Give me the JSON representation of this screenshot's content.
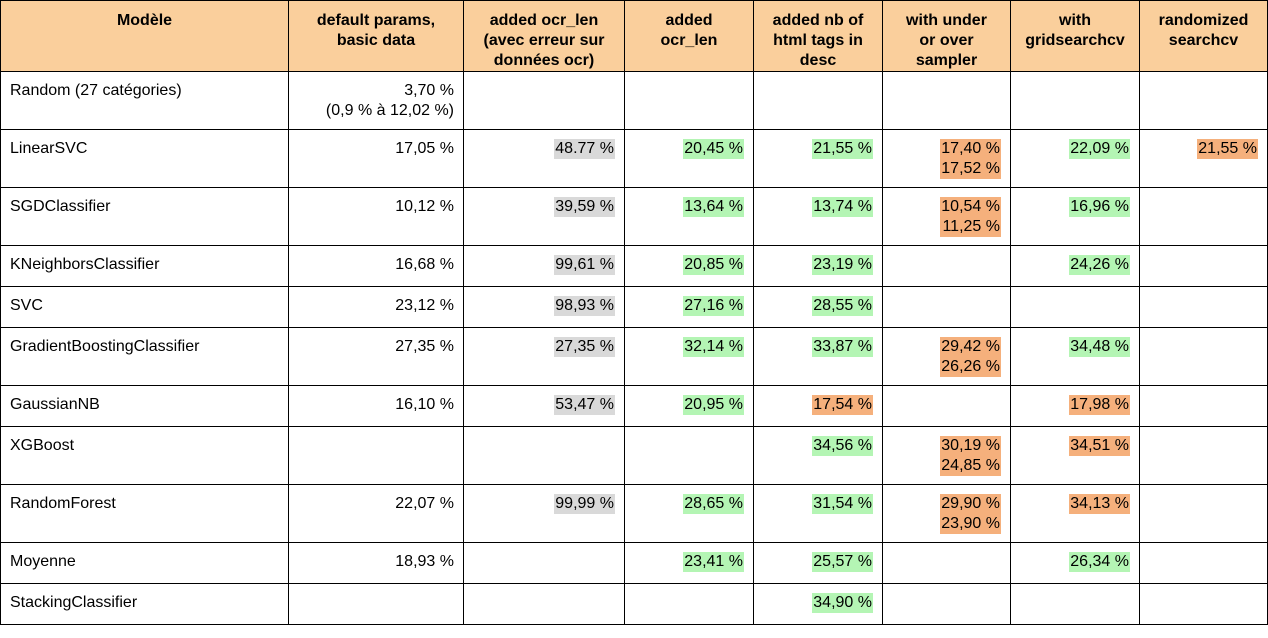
{
  "headers": [
    {
      "lines": [
        "Modèle"
      ]
    },
    {
      "lines": [
        "default params,",
        "basic data"
      ]
    },
    {
      "lines": [
        "added ocr_len",
        "(avec erreur sur",
        "données ocr)"
      ]
    },
    {
      "lines": [
        "added",
        "ocr_len"
      ]
    },
    {
      "lines": [
        "added nb of",
        "html tags in",
        "desc"
      ]
    },
    {
      "lines": [
        "with under",
        "or over",
        "sampler"
      ]
    },
    {
      "lines": [
        "with",
        "gridsearchcv"
      ]
    },
    {
      "lines": [
        "randomized",
        "searchcv"
      ]
    }
  ],
  "colors": {
    "header": "#facf9c",
    "gray": "#d9d9d9",
    "green": "#b4f5b4",
    "orange": "#f5b07c"
  },
  "rows": [
    {
      "model": "Random (27 catégories)",
      "cells": [
        {
          "lines": [
            "3,70 %",
            "(0,9 % à 12,02 %)"
          ],
          "hl": "none"
        },
        {
          "lines": [],
          "hl": "none"
        },
        {
          "lines": [],
          "hl": "none"
        },
        {
          "lines": [],
          "hl": "none"
        },
        {
          "lines": [],
          "hl": "none"
        },
        {
          "lines": [],
          "hl": "none"
        },
        {
          "lines": [],
          "hl": "none"
        }
      ]
    },
    {
      "model": "LinearSVC",
      "cells": [
        {
          "lines": [
            "17,05 %"
          ],
          "hl": "none"
        },
        {
          "lines": [
            "48.77 %"
          ],
          "hl": "gray"
        },
        {
          "lines": [
            "20,45 %"
          ],
          "hl": "green"
        },
        {
          "lines": [
            "21,55 %"
          ],
          "hl": "green"
        },
        {
          "lines": [
            "17,40 %",
            "17,52 %"
          ],
          "hl": "orange"
        },
        {
          "lines": [
            "22,09 %"
          ],
          "hl": "green"
        },
        {
          "lines": [
            "21,55 %"
          ],
          "hl": "orange"
        }
      ]
    },
    {
      "model": "SGDClassifier",
      "cells": [
        {
          "lines": [
            "10,12 %"
          ],
          "hl": "none"
        },
        {
          "lines": [
            "39,59 %"
          ],
          "hl": "gray"
        },
        {
          "lines": [
            "13,64 %"
          ],
          "hl": "green"
        },
        {
          "lines": [
            "13,74 %"
          ],
          "hl": "green"
        },
        {
          "lines": [
            "10,54 %",
            "11,25 %"
          ],
          "hl": "orange"
        },
        {
          "lines": [
            "16,96 %"
          ],
          "hl": "green"
        },
        {
          "lines": [],
          "hl": "none"
        }
      ]
    },
    {
      "model": "KNeighborsClassifier",
      "cells": [
        {
          "lines": [
            "16,68 %"
          ],
          "hl": "none"
        },
        {
          "lines": [
            "99,61 %"
          ],
          "hl": "gray"
        },
        {
          "lines": [
            "20,85 %"
          ],
          "hl": "green"
        },
        {
          "lines": [
            "23,19 %"
          ],
          "hl": "green"
        },
        {
          "lines": [],
          "hl": "none"
        },
        {
          "lines": [
            "24,26 %"
          ],
          "hl": "green"
        },
        {
          "lines": [],
          "hl": "none"
        }
      ],
      "short": true
    },
    {
      "model": "SVC",
      "cells": [
        {
          "lines": [
            "23,12 %"
          ],
          "hl": "none"
        },
        {
          "lines": [
            "98,93 %"
          ],
          "hl": "gray"
        },
        {
          "lines": [
            "27,16 %"
          ],
          "hl": "green"
        },
        {
          "lines": [
            "28,55 %"
          ],
          "hl": "green"
        },
        {
          "lines": [],
          "hl": "none"
        },
        {
          "lines": [],
          "hl": "none"
        },
        {
          "lines": [],
          "hl": "none"
        }
      ],
      "short": true
    },
    {
      "model": "GradientBoostingClassifier",
      "cells": [
        {
          "lines": [
            "27,35 %"
          ],
          "hl": "none"
        },
        {
          "lines": [
            "27,35 %"
          ],
          "hl": "gray"
        },
        {
          "lines": [
            "32,14 %"
          ],
          "hl": "green"
        },
        {
          "lines": [
            "33,87 %"
          ],
          "hl": "green"
        },
        {
          "lines": [
            "29,42 %",
            "26,26 %"
          ],
          "hl": "orange"
        },
        {
          "lines": [
            "34,48 %"
          ],
          "hl": "green"
        },
        {
          "lines": [],
          "hl": "none"
        }
      ]
    },
    {
      "model": "GaussianNB",
      "cells": [
        {
          "lines": [
            "16,10 %"
          ],
          "hl": "none"
        },
        {
          "lines": [
            "53,47 %"
          ],
          "hl": "gray"
        },
        {
          "lines": [
            "20,95 %"
          ],
          "hl": "green"
        },
        {
          "lines": [
            "17,54 %"
          ],
          "hl": "orange"
        },
        {
          "lines": [],
          "hl": "none"
        },
        {
          "lines": [
            "17,98 %"
          ],
          "hl": "orange"
        },
        {
          "lines": [],
          "hl": "none"
        }
      ],
      "short": true
    },
    {
      "model": "XGBoost",
      "cells": [
        {
          "lines": [],
          "hl": "none"
        },
        {
          "lines": [],
          "hl": "none"
        },
        {
          "lines": [],
          "hl": "none"
        },
        {
          "lines": [
            "34,56 %"
          ],
          "hl": "green"
        },
        {
          "lines": [
            "30,19 %",
            "24,85 %"
          ],
          "hl": "orange"
        },
        {
          "lines": [
            "34,51 %"
          ],
          "hl": "orange"
        },
        {
          "lines": [],
          "hl": "none"
        }
      ]
    },
    {
      "model": "RandomForest",
      "cells": [
        {
          "lines": [
            "22,07 %"
          ],
          "hl": "none"
        },
        {
          "lines": [
            "99,99 %"
          ],
          "hl": "gray"
        },
        {
          "lines": [
            "28,65 %"
          ],
          "hl": "green"
        },
        {
          "lines": [
            "31,54 %"
          ],
          "hl": "green"
        },
        {
          "lines": [
            "29,90 %",
            "23,90 %"
          ],
          "hl": "orange"
        },
        {
          "lines": [
            "34,13 %"
          ],
          "hl": "orange"
        },
        {
          "lines": [],
          "hl": "none"
        }
      ]
    },
    {
      "model": "Moyenne",
      "cells": [
        {
          "lines": [
            "18,93 %"
          ],
          "hl": "none"
        },
        {
          "lines": [],
          "hl": "none"
        },
        {
          "lines": [
            "23,41 %"
          ],
          "hl": "green"
        },
        {
          "lines": [
            "25,57 %"
          ],
          "hl": "green"
        },
        {
          "lines": [],
          "hl": "none"
        },
        {
          "lines": [
            "26,34 %"
          ],
          "hl": "green"
        },
        {
          "lines": [],
          "hl": "none"
        }
      ],
      "short": true
    },
    {
      "model": "StackingClassifier",
      "cells": [
        {
          "lines": [],
          "hl": "none"
        },
        {
          "lines": [],
          "hl": "none"
        },
        {
          "lines": [],
          "hl": "none"
        },
        {
          "lines": [
            "34,90 %"
          ],
          "hl": "green"
        },
        {
          "lines": [],
          "hl": "none"
        },
        {
          "lines": [],
          "hl": "none"
        },
        {
          "lines": [],
          "hl": "none"
        }
      ],
      "short": true
    }
  ]
}
